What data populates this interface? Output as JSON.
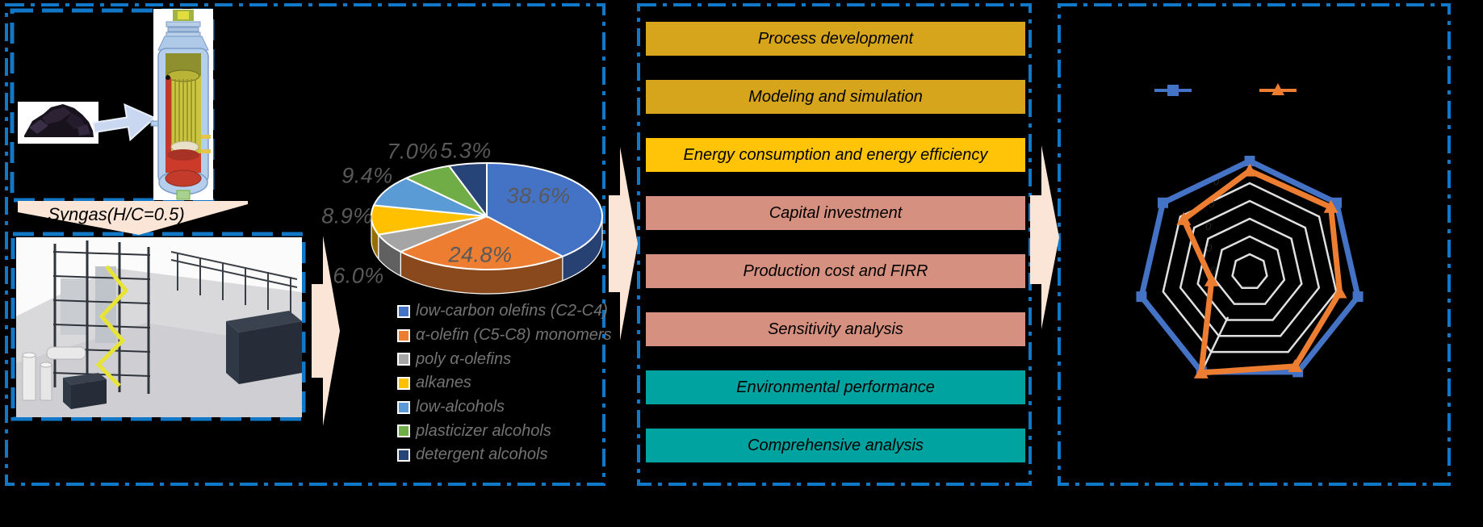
{
  "colors": {
    "background": "#000000",
    "panel_border_blue": "#1178C8",
    "flow_arrow_peach": "#FBE5D6",
    "pie_label_gray": "#595959",
    "legend_text_gray": "#737373"
  },
  "left_panel": {
    "syngas_label": "Syngas(H/C=0.5)",
    "images": [
      "coal-lumps-photo",
      "gasifier-cutaway-illustration",
      "plant-3d-render"
    ]
  },
  "process_steps": [
    {
      "label": "Process development",
      "color": "#D7A51B"
    },
    {
      "label": "Modeling and simulation",
      "color": "#D7A51B"
    },
    {
      "label": "Energy consumption and energy efficiency",
      "color": "#FFC307"
    },
    {
      "label": "Capital investment",
      "color": "#D6907F"
    },
    {
      "label": "Production cost and FIRR",
      "color": "#D6907F"
    },
    {
      "label": "Sensitivity analysis",
      "color": "#D6907F"
    },
    {
      "label": "Environmental performance",
      "color": "#01A3A0"
    },
    {
      "label": "Comprehensive analysis",
      "color": "#01A3A0"
    }
  ],
  "chart_data": [
    {
      "type": "pie",
      "style": "3d",
      "categories": [
        "low-carbon olefins (C2-C4)",
        "α-olefin (C5-C8) monomers",
        "poly α-olefins",
        "alkanes",
        "low-alcohols",
        "plasticizer alcohols",
        "detergent alcohols"
      ],
      "values": [
        38.6,
        24.8,
        6.0,
        8.9,
        9.4,
        7.0,
        5.3
      ],
      "data_labels": [
        "38.6%",
        "24.8%",
        "6.0%",
        "8.9%",
        "9.4%",
        "7.0%",
        "5.3%"
      ],
      "colors": [
        "#4472C4",
        "#ED7D31",
        "#A5A5A5",
        "#FFC000",
        "#5B9BD5",
        "#70AD47",
        "#264478"
      ],
      "start_angle_deg": 0,
      "direction": "clockwise",
      "legend_position": "bottom"
    },
    {
      "type": "radar",
      "axes_count": 7,
      "gridline_rings": 5,
      "values_unit": "fraction of outermost gridline ring",
      "axis_order": [
        "top",
        "upper-right",
        "right",
        "lower-right",
        "lower-left",
        "left",
        "upper-left"
      ],
      "series": [
        {
          "name": "series-blue",
          "color": "#4472C4",
          "marker": "square",
          "values": [
            1.25,
            1.25,
            1.25,
            1.25,
            1.25,
            1.25,
            1.25
          ]
        },
        {
          "name": "series-orange",
          "color": "#ED7D31",
          "marker": "triangle",
          "values": [
            1.14,
            1.17,
            1.04,
            1.18,
            1.26,
            0.44,
            0.95
          ]
        }
      ],
      "legend_position": "top",
      "legend_labels_visible": false,
      "axis_labels_visible": false,
      "radial_tick_fragments": [
        "0",
        "0",
        "0",
        "0",
        "0"
      ]
    }
  ]
}
